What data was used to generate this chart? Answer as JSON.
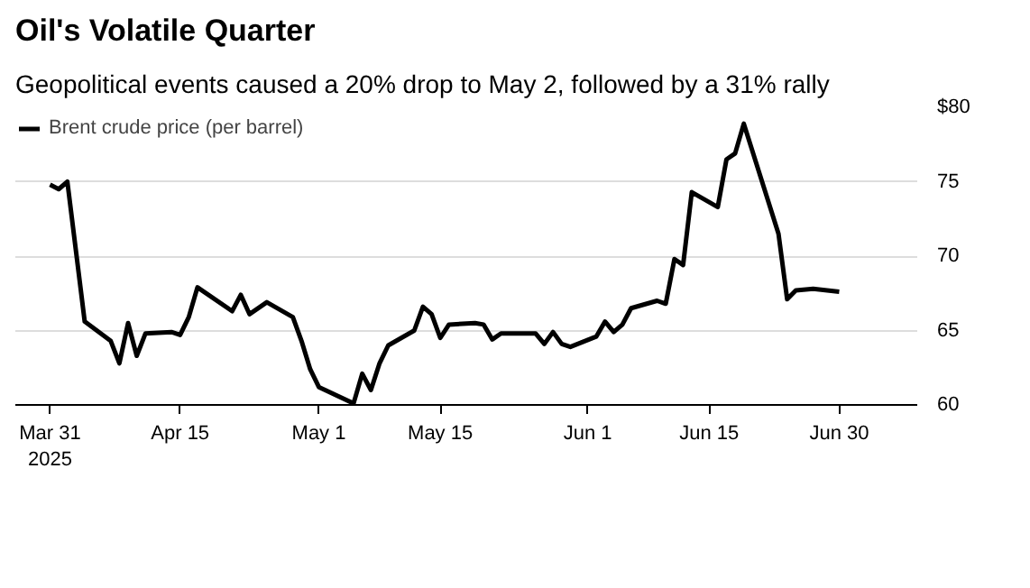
{
  "chart_data": {
    "type": "line",
    "title": "Oil's Volatile Quarter",
    "subtitle": "Geopolitical events caused a 20% drop to May 2, followed by a 31% rally",
    "x": [
      "2025-03-31",
      "2025-04-01",
      "2025-04-02",
      "2025-04-04",
      "2025-04-07",
      "2025-04-08",
      "2025-04-09",
      "2025-04-10",
      "2025-04-11",
      "2025-04-14",
      "2025-04-15",
      "2025-04-16",
      "2025-04-17",
      "2025-04-21",
      "2025-04-22",
      "2025-04-23",
      "2025-04-25",
      "2025-04-28",
      "2025-04-29",
      "2025-04-30",
      "2025-05-01",
      "2025-05-05",
      "2025-05-06",
      "2025-05-07",
      "2025-05-08",
      "2025-05-09",
      "2025-05-12",
      "2025-05-13",
      "2025-05-14",
      "2025-05-15",
      "2025-05-16",
      "2025-05-19",
      "2025-05-20",
      "2025-05-21",
      "2025-05-22",
      "2025-05-23",
      "2025-05-26",
      "2025-05-27",
      "2025-05-28",
      "2025-05-29",
      "2025-05-30",
      "2025-06-02",
      "2025-06-03",
      "2025-06-04",
      "2025-06-05",
      "2025-06-06",
      "2025-06-09",
      "2025-06-10",
      "2025-06-11",
      "2025-06-12",
      "2025-06-13",
      "2025-06-16",
      "2025-06-17",
      "2025-06-18",
      "2025-06-19",
      "2025-06-23",
      "2025-06-24",
      "2025-06-25",
      "2025-06-27",
      "2025-06-30"
    ],
    "series": [
      {
        "name": "Brent crude price (per barrel)",
        "color": "#000000",
        "values": [
          74.8,
          74.5,
          75.0,
          65.6,
          64.3,
          62.8,
          65.5,
          63.3,
          64.8,
          64.9,
          64.7,
          65.9,
          67.9,
          66.3,
          67.4,
          66.1,
          66.9,
          65.9,
          64.3,
          62.4,
          61.2,
          60.1,
          62.1,
          61.0,
          62.8,
          64.0,
          65.0,
          66.6,
          66.1,
          64.5,
          65.4,
          65.5,
          65.4,
          64.4,
          64.8,
          64.8,
          64.8,
          64.1,
          64.9,
          64.1,
          63.9,
          64.6,
          65.6,
          64.9,
          65.4,
          66.5,
          67.0,
          66.8,
          69.8,
          69.4,
          74.3,
          73.3,
          76.5,
          76.9,
          78.9,
          71.5,
          67.1,
          67.7,
          67.8,
          67.6
        ]
      }
    ],
    "xlim": [
      "2025-03-27",
      "2025-07-09"
    ],
    "xticks": [
      {
        "value": "2025-03-31",
        "label": "Mar 31\n2025"
      },
      {
        "value": "2025-04-15",
        "label": "Apr 15"
      },
      {
        "value": "2025-05-01",
        "label": "May 1"
      },
      {
        "value": "2025-05-15",
        "label": "May 15"
      },
      {
        "value": "2025-06-01",
        "label": "Jun 1"
      },
      {
        "value": "2025-06-15",
        "label": "Jun 15"
      },
      {
        "value": "2025-06-30",
        "label": "Jun 30"
      }
    ],
    "ylim": [
      60,
      80
    ],
    "yticks": [
      60,
      65,
      70,
      75,
      {
        "value": 80,
        "label": "$80"
      }
    ],
    "grid": "y",
    "legend": "top left",
    "line_style": "solid"
  }
}
